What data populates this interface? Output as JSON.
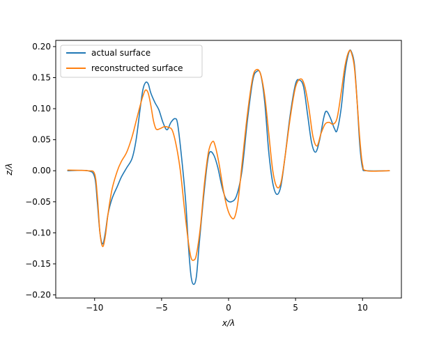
{
  "chart_data": {
    "type": "line",
    "title": "",
    "xlabel": "x/λ",
    "ylabel": "z/λ",
    "xlim": [
      -12.9,
      12.9
    ],
    "ylim": [
      -0.205,
      0.21
    ],
    "xticks": [
      -10,
      -5,
      0,
      5,
      10
    ],
    "xtick_labels": [
      "−10",
      "−5",
      "0",
      "5",
      "10"
    ],
    "yticks": [
      -0.2,
      -0.15,
      -0.1,
      -0.05,
      0.0,
      0.05,
      0.1,
      0.15,
      0.2
    ],
    "ytick_labels": [
      "−0.20",
      "−0.15",
      "−0.10",
      "−0.05",
      "0.00",
      "0.05",
      "0.10",
      "0.15",
      "0.20"
    ],
    "grid": false,
    "legend_position": "upper-left",
    "series": [
      {
        "name": "actual surface",
        "color": "#1f77b4",
        "points": [
          [
            -12.0,
            0.0
          ],
          [
            -10.5,
            0.0
          ],
          [
            -10.0,
            -0.01
          ],
          [
            -9.8,
            -0.05
          ],
          [
            -9.6,
            -0.1
          ],
          [
            -9.4,
            -0.118
          ],
          [
            -9.2,
            -0.1
          ],
          [
            -9.0,
            -0.07
          ],
          [
            -8.7,
            -0.045
          ],
          [
            -8.3,
            -0.025
          ],
          [
            -8.0,
            -0.01
          ],
          [
            -7.6,
            0.005
          ],
          [
            -7.2,
            0.02
          ],
          [
            -6.9,
            0.05
          ],
          [
            -6.6,
            0.1
          ],
          [
            -6.4,
            0.13
          ],
          [
            -6.2,
            0.142
          ],
          [
            -6.0,
            0.14
          ],
          [
            -5.8,
            0.125
          ],
          [
            -5.5,
            0.11
          ],
          [
            -5.2,
            0.098
          ],
          [
            -4.9,
            0.078
          ],
          [
            -4.6,
            0.066
          ],
          [
            -4.3,
            0.078
          ],
          [
            -4.0,
            0.084
          ],
          [
            -3.8,
            0.075
          ],
          [
            -3.5,
            0.02
          ],
          [
            -3.2,
            -0.05
          ],
          [
            -3.0,
            -0.12
          ],
          [
            -2.8,
            -0.17
          ],
          [
            -2.6,
            -0.183
          ],
          [
            -2.4,
            -0.17
          ],
          [
            -2.2,
            -0.12
          ],
          [
            -1.9,
            -0.05
          ],
          [
            -1.6,
            0.01
          ],
          [
            -1.4,
            0.03
          ],
          [
            -1.1,
            0.025
          ],
          [
            -0.8,
            0.005
          ],
          [
            -0.5,
            -0.025
          ],
          [
            -0.2,
            -0.045
          ],
          [
            0.2,
            -0.05
          ],
          [
            0.6,
            -0.04
          ],
          [
            1.0,
            0.0
          ],
          [
            1.4,
            0.08
          ],
          [
            1.8,
            0.145
          ],
          [
            2.1,
            0.16
          ],
          [
            2.4,
            0.155
          ],
          [
            2.7,
            0.11
          ],
          [
            3.0,
            0.03
          ],
          [
            3.3,
            -0.02
          ],
          [
            3.6,
            -0.038
          ],
          [
            3.9,
            -0.025
          ],
          [
            4.2,
            0.02
          ],
          [
            4.6,
            0.09
          ],
          [
            5.0,
            0.14
          ],
          [
            5.3,
            0.146
          ],
          [
            5.6,
            0.135
          ],
          [
            5.9,
            0.09
          ],
          [
            6.2,
            0.045
          ],
          [
            6.5,
            0.03
          ],
          [
            6.8,
            0.05
          ],
          [
            7.1,
            0.085
          ],
          [
            7.3,
            0.096
          ],
          [
            7.6,
            0.085
          ],
          [
            7.9,
            0.068
          ],
          [
            8.1,
            0.065
          ],
          [
            8.4,
            0.1
          ],
          [
            8.7,
            0.16
          ],
          [
            9.0,
            0.192
          ],
          [
            9.2,
            0.19
          ],
          [
            9.4,
            0.17
          ],
          [
            9.6,
            0.11
          ],
          [
            9.8,
            0.04
          ],
          [
            10.0,
            0.005
          ],
          [
            10.3,
            0.0
          ],
          [
            12.0,
            0.0
          ]
        ]
      },
      {
        "name": "reconstructed surface",
        "color": "#ff7f0e",
        "points": [
          [
            -12.0,
            0.001
          ],
          [
            -10.5,
            0.0
          ],
          [
            -10.0,
            -0.005
          ],
          [
            -9.8,
            -0.04
          ],
          [
            -9.6,
            -0.1
          ],
          [
            -9.4,
            -0.122
          ],
          [
            -9.2,
            -0.105
          ],
          [
            -9.0,
            -0.07
          ],
          [
            -8.7,
            -0.03
          ],
          [
            -8.3,
            0.0
          ],
          [
            -8.0,
            0.015
          ],
          [
            -7.6,
            0.03
          ],
          [
            -7.2,
            0.055
          ],
          [
            -6.9,
            0.08
          ],
          [
            -6.6,
            0.105
          ],
          [
            -6.4,
            0.12
          ],
          [
            -6.2,
            0.13
          ],
          [
            -6.0,
            0.125
          ],
          [
            -5.8,
            0.105
          ],
          [
            -5.6,
            0.08
          ],
          [
            -5.4,
            0.067
          ],
          [
            -5.1,
            0.068
          ],
          [
            -4.8,
            0.071
          ],
          [
            -4.5,
            0.07
          ],
          [
            -4.2,
            0.065
          ],
          [
            -3.9,
            0.04
          ],
          [
            -3.6,
            0.0
          ],
          [
            -3.3,
            -0.06
          ],
          [
            -3.0,
            -0.115
          ],
          [
            -2.8,
            -0.14
          ],
          [
            -2.6,
            -0.144
          ],
          [
            -2.4,
            -0.135
          ],
          [
            -2.1,
            -0.09
          ],
          [
            -1.8,
            -0.02
          ],
          [
            -1.5,
            0.03
          ],
          [
            -1.2,
            0.047
          ],
          [
            -1.0,
            0.04
          ],
          [
            -0.7,
            0.01
          ],
          [
            -0.4,
            -0.03
          ],
          [
            -0.1,
            -0.06
          ],
          [
            0.2,
            -0.075
          ],
          [
            0.45,
            -0.075
          ],
          [
            0.7,
            -0.05
          ],
          [
            1.0,
            0.01
          ],
          [
            1.4,
            0.09
          ],
          [
            1.8,
            0.15
          ],
          [
            2.1,
            0.163
          ],
          [
            2.4,
            0.155
          ],
          [
            2.7,
            0.12
          ],
          [
            3.0,
            0.06
          ],
          [
            3.3,
            0.0
          ],
          [
            3.6,
            -0.026
          ],
          [
            3.9,
            -0.02
          ],
          [
            4.2,
            0.02
          ],
          [
            4.6,
            0.085
          ],
          [
            5.0,
            0.135
          ],
          [
            5.4,
            0.148
          ],
          [
            5.7,
            0.135
          ],
          [
            6.0,
            0.1
          ],
          [
            6.3,
            0.055
          ],
          [
            6.6,
            0.04
          ],
          [
            6.9,
            0.06
          ],
          [
            7.2,
            0.075
          ],
          [
            7.5,
            0.078
          ],
          [
            7.8,
            0.075
          ],
          [
            8.1,
            0.085
          ],
          [
            8.4,
            0.125
          ],
          [
            8.7,
            0.17
          ],
          [
            9.0,
            0.193
          ],
          [
            9.2,
            0.188
          ],
          [
            9.4,
            0.165
          ],
          [
            9.6,
            0.11
          ],
          [
            9.8,
            0.05
          ],
          [
            10.0,
            0.01
          ],
          [
            10.3,
            0.0
          ],
          [
            12.0,
            0.0
          ]
        ]
      }
    ]
  }
}
